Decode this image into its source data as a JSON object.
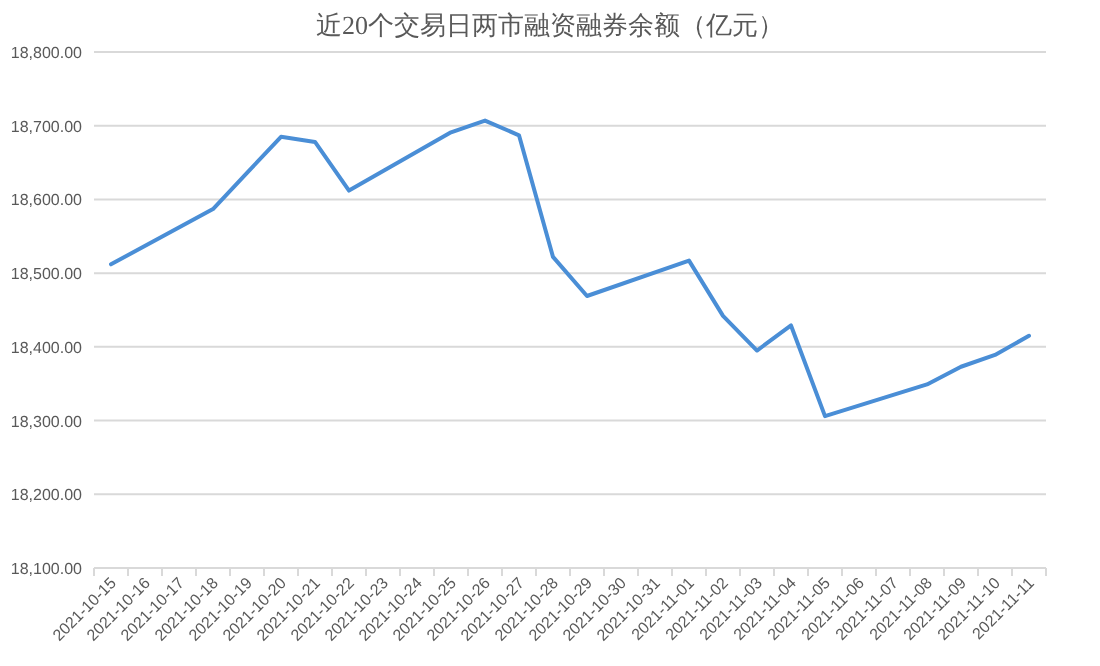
{
  "chart_data": {
    "type": "line",
    "title": "近20个交易日两市融资融券余额（亿元）",
    "categories": [
      "2021-10-15",
      "2021-10-16",
      "2021-10-17",
      "2021-10-18",
      "2021-10-19",
      "2021-10-20",
      "2021-10-21",
      "2021-10-22",
      "2021-10-23",
      "2021-10-24",
      "2021-10-25",
      "2021-10-26",
      "2021-10-27",
      "2021-10-28",
      "2021-10-29",
      "2021-10-30",
      "2021-10-31",
      "2021-11-01",
      "2021-11-02",
      "2021-11-03",
      "2021-11-04",
      "2021-11-05",
      "2021-11-06",
      "2021-11-07",
      "2021-11-08",
      "2021-11-09",
      "2021-11-10",
      "2021-11-11"
    ],
    "series": [
      {
        "color": "#4a8ed6",
        "values": [
          18512,
          null,
          null,
          18587,
          18636,
          18685,
          18678,
          18612,
          null,
          null,
          18691,
          18707,
          18687,
          18522,
          18469,
          null,
          null,
          18517,
          18442,
          18395,
          18429,
          18306,
          null,
          null,
          18349,
          18373,
          18389,
          18415
        ]
      }
    ],
    "ylim": [
      18100,
      18800
    ],
    "yticks": [
      {
        "value": 18100,
        "label": "18,100.00"
      },
      {
        "value": 18200,
        "label": "18,200.00"
      },
      {
        "value": 18300,
        "label": "18,300.00"
      },
      {
        "value": 18400,
        "label": "18,400.00"
      },
      {
        "value": 18500,
        "label": "18,500.00"
      },
      {
        "value": 18600,
        "label": "18,600.00"
      },
      {
        "value": 18700,
        "label": "18,700.00"
      },
      {
        "value": 18800,
        "label": "18,800.00"
      }
    ],
    "grid": "y",
    "marker": "none",
    "line_style": "solid"
  }
}
